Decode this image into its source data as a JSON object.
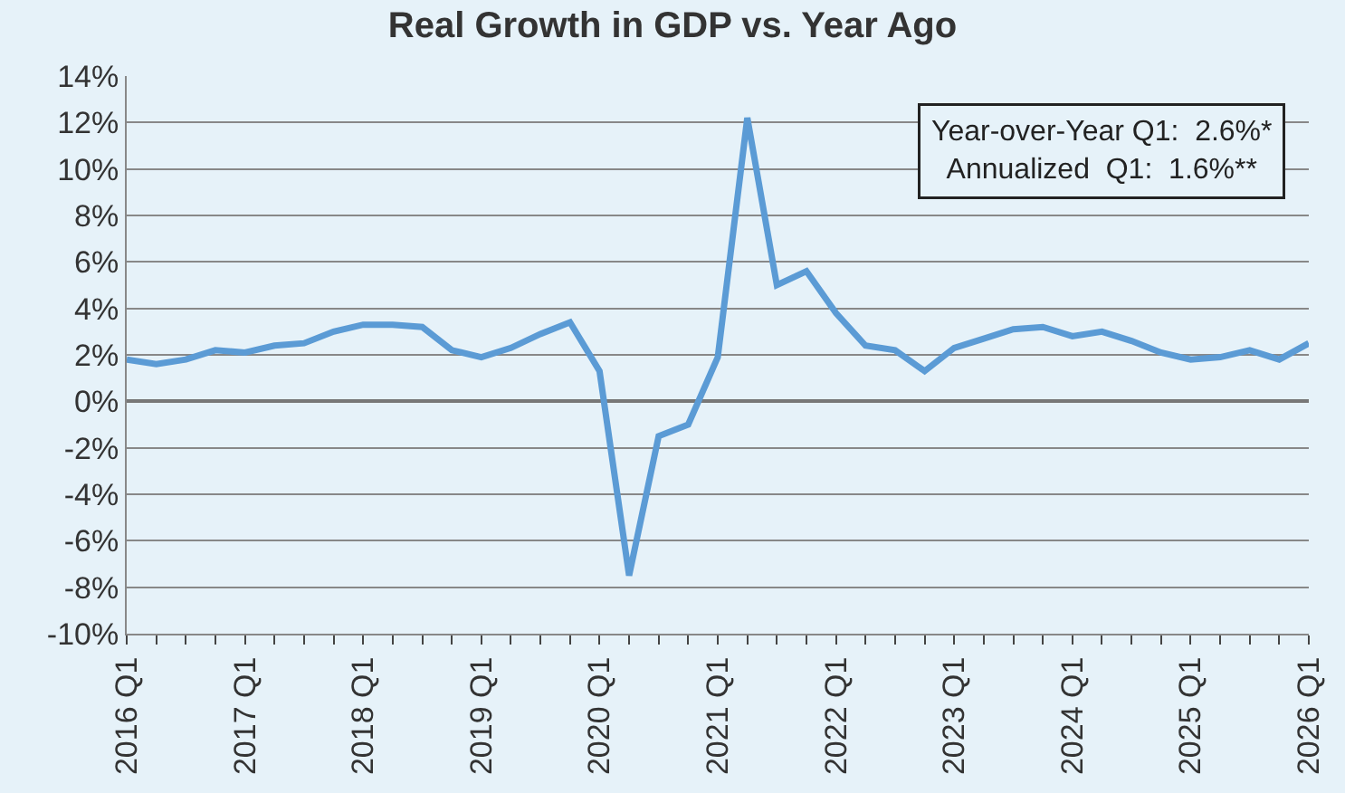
{
  "chart_data": {
    "type": "line",
    "title": "Real Growth in GDP vs. Year Ago",
    "categories": [
      "2016 Q1",
      null,
      null,
      null,
      "2017 Q1",
      null,
      null,
      null,
      "2018 Q1",
      null,
      null,
      null,
      "2019 Q1",
      null,
      null,
      null,
      "2020 Q1",
      null,
      null,
      null,
      "2021 Q1",
      null,
      null,
      null,
      "2022 Q1",
      null,
      null,
      null,
      "2023 Q1",
      null,
      null,
      null,
      "2024 Q1",
      null,
      null,
      null,
      "2025 Q1",
      null,
      null,
      null,
      "2026 Q1"
    ],
    "series": [
      {
        "color": "#5b9bd5",
        "values": [
          1.8,
          1.6,
          1.8,
          2.2,
          2.1,
          2.4,
          2.5,
          3.0,
          3.3,
          3.3,
          3.2,
          2.2,
          1.9,
          2.3,
          2.9,
          3.4,
          1.3,
          -7.5,
          -1.5,
          -1.0,
          1.9,
          12.2,
          5.0,
          5.6,
          3.8,
          2.4,
          2.2,
          1.3,
          2.3,
          2.7,
          3.1,
          3.2,
          2.8,
          3.0,
          2.6,
          2.1,
          1.8,
          1.9,
          2.2,
          1.8,
          2.5
        ]
      }
    ],
    "ylim": [
      -10,
      14
    ],
    "yticks": [
      {
        "value": -10,
        "label": "-10%"
      },
      {
        "value": -8,
        "label": "-8%"
      },
      {
        "value": -6,
        "label": "-6%"
      },
      {
        "value": -4,
        "label": "-4%"
      },
      {
        "value": -2,
        "label": "-2%"
      },
      {
        "value": 0,
        "label": "0%"
      },
      {
        "value": 2,
        "label": "2%"
      },
      {
        "value": 4,
        "label": "4%"
      },
      {
        "value": 6,
        "label": "6%"
      },
      {
        "value": 8,
        "label": "8%"
      },
      {
        "value": 10,
        "label": "10%"
      },
      {
        "value": 12,
        "label": "12%"
      },
      {
        "value": 14,
        "label": "14%"
      }
    ],
    "annotations": [
      "Year-over-Year Q1:  2.6%*",
      "Annualized  Q1:  1.6%**"
    ],
    "grid": "y",
    "marker": "none",
    "line_style": "solid"
  }
}
